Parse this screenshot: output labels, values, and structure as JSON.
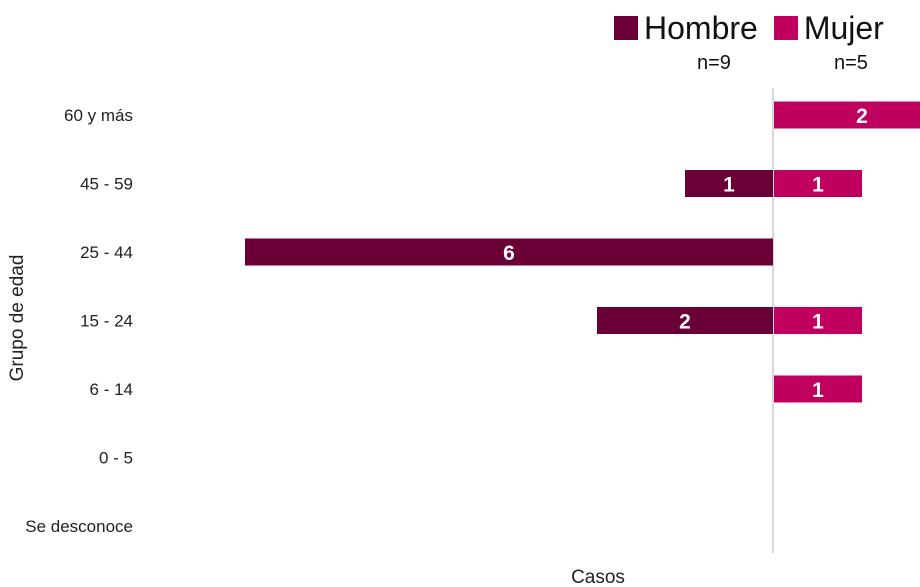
{
  "chart_data": {
    "type": "bar",
    "orientation": "horizontal-diverging",
    "categories": [
      "60 y más",
      "45 - 59",
      "25 - 44",
      "15 - 24",
      "6 - 14",
      "0 - 5",
      "Se desconoce"
    ],
    "series": [
      {
        "name": "Hombre",
        "n_label": "n=9",
        "color": "#6b0036",
        "values": [
          0,
          1,
          6,
          2,
          0,
          0,
          0
        ]
      },
      {
        "name": "Mujer",
        "n_label": "n=5",
        "color": "#c0005f",
        "values": [
          2,
          1,
          0,
          1,
          1,
          0,
          0
        ]
      }
    ],
    "xlabel": "Casos",
    "ylabel": "Grupo de edad",
    "legend_position": "top-right",
    "grid": false,
    "axis_color": "#d9d9d9"
  }
}
